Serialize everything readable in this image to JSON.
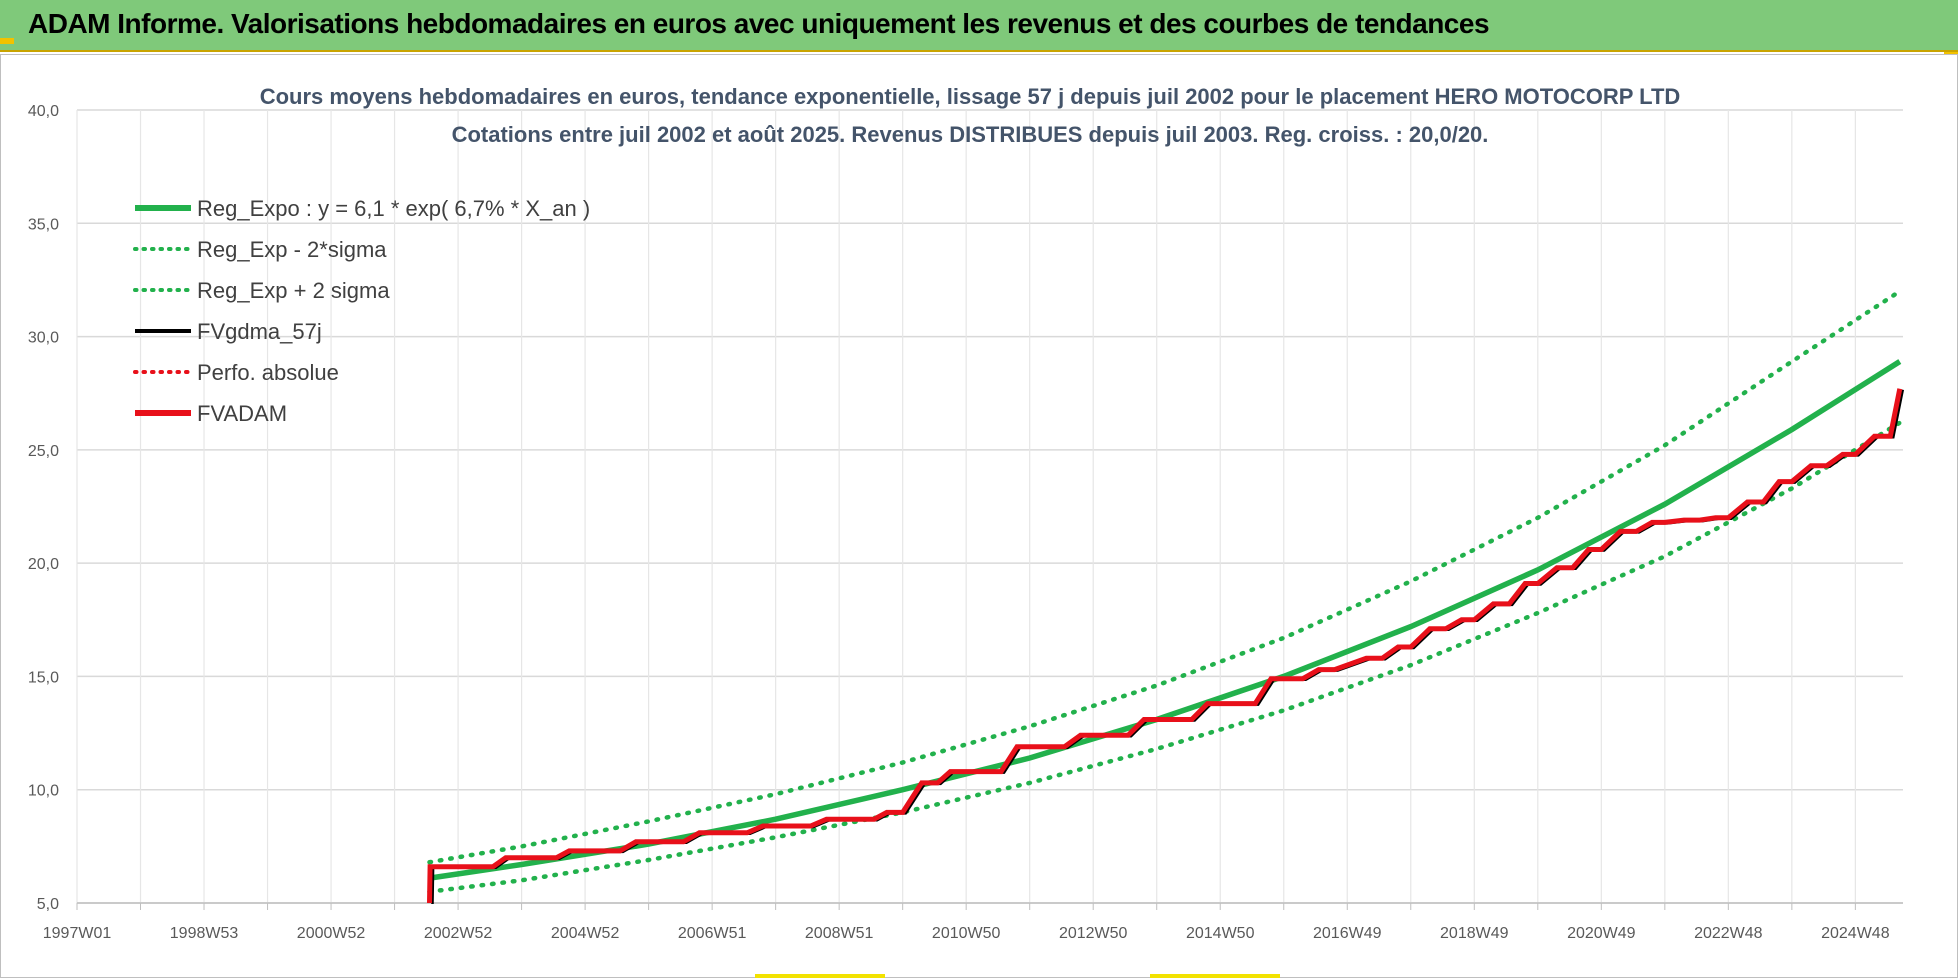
{
  "header": {
    "title": "ADAM Informe. Valorisations hebdomadaires en euros avec uniquement les revenus et des courbes de tendances"
  },
  "colors": {
    "header_bg": "#7fc97a",
    "trend": "#22b14c",
    "fv": "#000000",
    "adam": "#e8101a",
    "grid": "#d9d9d9"
  },
  "chart_data": {
    "type": "line",
    "title_line1": "Cours moyens hebdomadaires en euros, tendance exponentielle, lissage 57 j depuis juil 2002 pour le placement HERO MOTOCORP LTD",
    "title_line2": "Cotations entre juil 2002 et août 2025. Revenus DISTRIBUES depuis juil 2003. Reg. croiss. : 20,0/20.",
    "x_tick_labels": [
      "1997W01",
      "1998W53",
      "2000W52",
      "2002W52",
      "2004W52",
      "2006W51",
      "2008W51",
      "2010W50",
      "2012W50",
      "2014W50",
      "2016W49",
      "2018W49",
      "2020W49",
      "2022W48",
      "2024W48"
    ],
    "xlim": [
      1997.0,
      2025.75
    ],
    "x_label_spacing_years": 2,
    "ylim": [
      5,
      40
    ],
    "y_ticks": [
      5,
      10,
      15,
      20,
      25,
      30,
      35,
      40
    ],
    "y_tick_labels": [
      "5,0",
      "10,0",
      "15,0",
      "20,0",
      "25,0",
      "30,0",
      "35,0",
      "40,0"
    ],
    "grid": true,
    "legend_position": "top-left",
    "legend": [
      {
        "label": "Reg_Expo : y = 6,1 * exp( 6,7% *  X_an )",
        "color": "#22b14c",
        "style": "solid-thick"
      },
      {
        "label": "Reg_Exp - 2*sigma",
        "color": "#22b14c",
        "style": "dotted"
      },
      {
        "label": "Reg_Exp + 2 sigma",
        "color": "#22b14c",
        "style": "dotted"
      },
      {
        "label": "FVgdma_57j",
        "color": "#000000",
        "style": "solid"
      },
      {
        "label": "Perfo. absolue",
        "color": "#e8101a",
        "style": "dotted"
      },
      {
        "label": "FVADAM",
        "color": "#e8101a",
        "style": "solid-thick"
      }
    ],
    "series": [
      {
        "name": "Reg_Expo : y = 6,1 * exp( 6,7% *  X_an )",
        "x": [
          2002.55,
          2004,
          2006,
          2008,
          2010,
          2012,
          2014,
          2016,
          2018,
          2020,
          2022,
          2024,
          2025.7
        ],
        "values": [
          6.1,
          6.7,
          7.6,
          8.7,
          10.0,
          11.4,
          13.1,
          15.0,
          17.2,
          19.7,
          22.6,
          25.9,
          28.9
        ]
      },
      {
        "name": "Reg_Exp - 2*sigma",
        "x": [
          2002.55,
          2004,
          2006,
          2008,
          2010,
          2012,
          2014,
          2016,
          2018,
          2020,
          2022,
          2024,
          2025.7
        ],
        "values": [
          5.5,
          6.0,
          6.9,
          7.9,
          9.0,
          10.3,
          11.8,
          13.5,
          15.5,
          17.8,
          20.3,
          23.3,
          26.2
        ]
      },
      {
        "name": "Reg_Exp + 2 sigma",
        "x": [
          2002.55,
          2004,
          2006,
          2008,
          2010,
          2012,
          2014,
          2016,
          2018,
          2020,
          2022,
          2024,
          2025.7
        ],
        "values": [
          6.8,
          7.5,
          8.6,
          9.8,
          11.2,
          12.8,
          14.6,
          16.7,
          19.2,
          22.0,
          25.2,
          28.9,
          32.0
        ]
      },
      {
        "name": "FVADAM",
        "x": [
          2002.55,
          2002.56,
          2003.55,
          2003.75,
          2004.55,
          2004.75,
          2005.55,
          2005.8,
          2006.55,
          2006.8,
          2007.55,
          2007.8,
          2008.55,
          2008.8,
          2009.55,
          2009.75,
          2010.0,
          2010.3,
          2010.55,
          2010.75,
          2011.55,
          2011.8,
          2012.55,
          2012.8,
          2013.55,
          2013.8,
          2014.55,
          2014.8,
          2015.55,
          2015.8,
          2016.3,
          2016.55,
          2016.8,
          2017.3,
          2017.55,
          2017.8,
          2018.0,
          2018.3,
          2018.55,
          2018.8,
          2019.0,
          2019.3,
          2019.55,
          2019.8,
          2020.0,
          2020.3,
          2020.55,
          2020.8,
          2021.0,
          2021.3,
          2021.55,
          2021.8,
          2022.0,
          2022.3,
          2022.55,
          2022.8,
          2023.0,
          2023.3,
          2023.55,
          2023.8,
          2024.0,
          2024.3,
          2024.55,
          2024.8,
          2025.0,
          2025.3,
          2025.55,
          2025.7
        ],
        "values": [
          5.0,
          6.6,
          6.6,
          7.0,
          7.0,
          7.3,
          7.3,
          7.7,
          7.7,
          8.1,
          8.1,
          8.4,
          8.4,
          8.7,
          8.7,
          9.0,
          9.0,
          10.3,
          10.3,
          10.8,
          10.8,
          11.9,
          11.9,
          12.4,
          12.4,
          13.1,
          13.1,
          13.8,
          13.8,
          14.9,
          14.9,
          15.3,
          15.3,
          15.8,
          15.8,
          16.3,
          16.3,
          17.1,
          17.1,
          17.5,
          17.5,
          18.2,
          18.2,
          19.1,
          19.1,
          19.8,
          19.8,
          20.6,
          20.6,
          21.4,
          21.4,
          21.8,
          21.8,
          21.9,
          21.9,
          22.0,
          22.0,
          22.7,
          22.7,
          23.6,
          23.6,
          24.3,
          24.3,
          24.8,
          24.8,
          25.6,
          25.6,
          27.7
        ]
      }
    ]
  }
}
